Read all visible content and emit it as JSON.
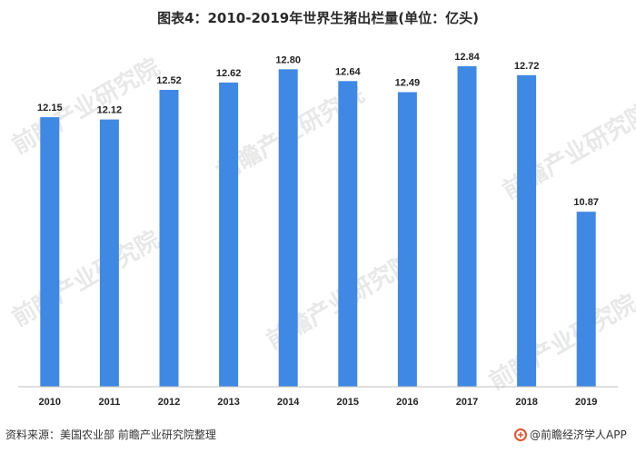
{
  "chart_data": {
    "type": "bar",
    "title": "图表4：2010-2019年世界生猪出栏量(单位：亿头)",
    "categories": [
      "2010",
      "2011",
      "2012",
      "2013",
      "2014",
      "2015",
      "2016",
      "2017",
      "2018",
      "2019"
    ],
    "values": [
      12.15,
      12.12,
      12.52,
      12.62,
      12.8,
      12.64,
      12.49,
      12.84,
      12.72,
      10.87
    ],
    "value_labels": [
      "12.15",
      "12.12",
      "12.52",
      "12.62",
      "12.80",
      "12.64",
      "12.49",
      "12.84",
      "12.72",
      "10.87"
    ],
    "xlabel": "",
    "ylabel": "",
    "ylim": [
      8.5,
      13.0
    ],
    "grid": false,
    "legend": "none",
    "bar_color": "#3f88e3"
  },
  "footer": {
    "source": "资料来源：美国农业部 前瞻产业研究院整理",
    "brand": "@前瞻经济学人APP"
  },
  "watermark": {
    "text": "前瞻产业研究院"
  },
  "colors": {
    "axis": "#bfbfbf",
    "logo": "#e8502a"
  }
}
